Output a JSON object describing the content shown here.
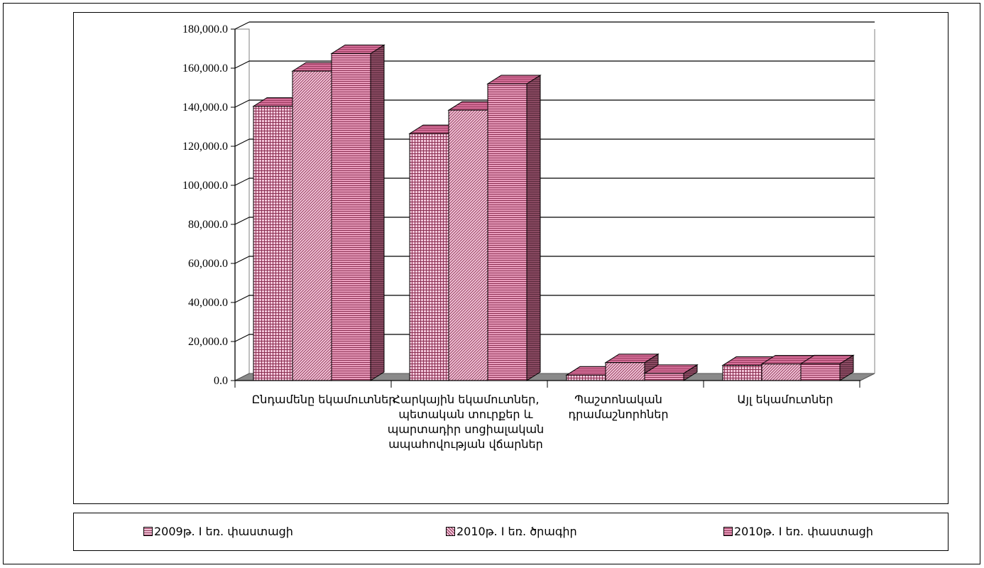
{
  "colors": {
    "bar_fill": "#efbcd2",
    "bar_grid": "#8b2f52",
    "bar_top": "#e27fa5",
    "bar_side": "#8a4a62",
    "floor": "#8a8a8a",
    "grid": "#000000"
  },
  "chart_data": {
    "type": "bar",
    "title": "",
    "xlabel": "",
    "ylabel": "",
    "ylim": [
      0,
      180000
    ],
    "y_ticks": [
      "0.0",
      "20,000.0",
      "40,000.0",
      "60,000.0",
      "80,000.0",
      "100,000.0",
      "120,000.0",
      "140,000.0",
      "160,000.0",
      "180,000.0"
    ],
    "categories": [
      "Ընդամենը եկամուտներ",
      "Հարկային եկամուտներ, պետական տուրքեր և պարտադիր սոցիալական ապահովության վճարներ",
      "Պաշտոնական դրամաշնորհներ",
      "Այլ եկամուտներ"
    ],
    "series": [
      {
        "name": "2009թ. I եռ. փաստացի",
        "pattern": "grid",
        "values": [
          140500,
          126500,
          2800,
          7800
        ]
      },
      {
        "name": "2010թ. I եռ. ծրագիր",
        "pattern": "diag",
        "values": [
          158500,
          138500,
          9200,
          8500
        ]
      },
      {
        "name": "2010թ. I եռ. փաստացի",
        "pattern": "horiz",
        "values": [
          167500,
          152000,
          3700,
          8600
        ]
      }
    ],
    "grid": true,
    "legend_position": "bottom"
  }
}
